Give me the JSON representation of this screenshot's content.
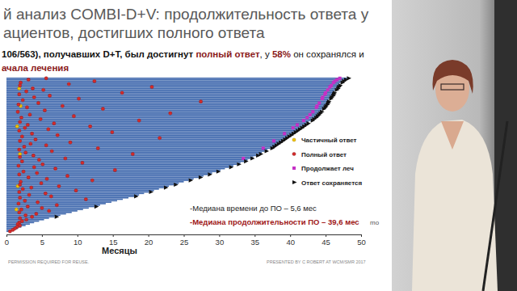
{
  "chart_data": {
    "type": "bar",
    "orientation": "horizontal",
    "title": [
      "й анализ COMBI-D+V: продолжительность ответа у",
      "ациентов, достигших полного ответа"
    ],
    "subtitle": [
      [
        {
          "text": "106/563), получавших D+T, был достигнут ",
          "color": "#111111"
        },
        {
          "text": "полный ответ",
          "color": "#8b1a1a"
        },
        {
          "text": ", у ",
          "color": "#111111"
        },
        {
          "text": "58%",
          "color": "#8b1a1a"
        },
        {
          "text": " он сохранялся и",
          "color": "#111111"
        }
      ],
      [
        {
          "text": "ачала лечения",
          "color": "#8b1a1a"
        }
      ]
    ],
    "x_label": "Месяцы",
    "xlim": [
      0,
      50
    ],
    "xticks": [
      0,
      5,
      10,
      15,
      20,
      25,
      30,
      35,
      40,
      45,
      50
    ],
    "tick_labels": "x",
    "grid": false,
    "legend": "right",
    "color": "#3f68ad",
    "values": [
      48.0,
      47.6,
      47.3,
      47.1,
      46.9,
      46.8,
      46.6,
      46.5,
      46.3,
      46.2,
      46.0,
      45.9,
      45.8,
      45.6,
      45.5,
      45.4,
      45.2,
      45.1,
      45.0,
      44.8,
      44.7,
      44.5,
      44.4,
      44.2,
      44.0,
      43.8,
      43.6,
      43.4,
      43.1,
      42.9,
      42.6,
      42.3,
      42.0,
      41.7,
      41.4,
      41.1,
      40.8,
      40.5,
      40.2,
      39.9,
      39.6,
      39.3,
      39.0,
      38.7,
      38.4,
      38.1,
      37.8,
      37.5,
      37.2,
      36.8,
      36.4,
      36.0,
      35.6,
      35.2,
      34.8,
      34.4,
      34.0,
      33.5,
      33.0,
      32.5,
      32.0,
      31.4,
      30.8,
      30.2,
      29.6,
      29.0,
      28.4,
      27.8,
      27.1,
      26.4,
      25.7,
      25.0,
      24.3,
      23.6,
      22.9,
      22.2,
      21.5,
      20.8,
      20.1,
      19.4,
      18.7,
      18.0,
      17.2,
      16.4,
      15.6,
      14.8,
      14.0,
      13.2,
      12.4,
      11.6,
      10.8,
      10.0,
      9.2,
      8.4,
      7.6,
      6.8,
      6.0,
      5.3,
      4.6,
      3.9,
      3.3,
      2.7,
      2.1,
      1.6,
      1.1,
      0.6
    ],
    "series": [
      {
        "name": "Частичный ответ",
        "type": "scatter",
        "marker": "circle",
        "color": "#f2c200",
        "values": [
          null,
          null,
          null,
          null,
          null,
          null,
          null,
          1.8,
          null,
          null,
          null,
          null,
          null,
          null,
          null,
          null,
          null,
          null,
          null,
          2.0,
          null,
          null,
          null,
          null,
          null,
          null,
          null,
          null,
          null,
          null,
          null,
          null,
          null,
          1.5,
          null,
          null,
          null,
          null,
          null,
          null,
          null,
          null,
          null,
          null,
          null,
          null,
          null,
          null,
          null,
          null,
          null,
          null,
          1.9,
          null,
          null,
          null,
          null,
          null,
          null,
          null,
          null,
          null,
          null,
          null,
          null,
          null,
          null,
          null,
          null,
          null,
          null,
          null,
          null,
          null,
          1.6,
          null,
          null,
          null,
          null,
          null,
          null,
          null,
          null,
          null,
          null,
          null,
          null,
          null,
          null,
          null,
          1.4,
          null,
          null,
          null,
          null,
          null,
          null,
          null,
          null,
          null,
          null,
          null,
          null,
          null,
          null,
          null
        ]
      },
      {
        "name": "Полный ответ",
        "type": "scatter",
        "marker": "circle",
        "color": "#d42a2a",
        "values": [
          5.6,
          3.1,
          12.4,
          2.0,
          8.8,
          1.9,
          20.5,
          3.7,
          5.2,
          2.8,
          16.3,
          1.8,
          6.1,
          3.9,
          10.2,
          2.3,
          27.4,
          4.5,
          1.7,
          7.9,
          2.9,
          13.6,
          5.4,
          1.6,
          23.1,
          3.3,
          9.5,
          2.1,
          4.8,
          18.7,
          1.9,
          6.7,
          3.0,
          11.8,
          2.6,
          5.9,
          1.8,
          14.9,
          3.6,
          7.2,
          2.2,
          21.6,
          4.1,
          1.9,
          9.0,
          3.4,
          5.6,
          2.5,
          12.9,
          1.8,
          6.4,
          2.7,
          17.8,
          3.8,
          1.9,
          8.3,
          4.6,
          2.2,
          10.7,
          5.1,
          1.7,
          3.9,
          6.9,
          15.3,
          2.4,
          4.3,
          1.8,
          8.6,
          3.1,
          5.7,
          12.1,
          2.0,
          4.9,
          1.9,
          7.4,
          3.5,
          2.3,
          9.8,
          1.8,
          5.5,
          3.2,
          6.3,
          1.9,
          11.2,
          2.6,
          4.4,
          1.7,
          7.1,
          3.0,
          5.0,
          2.1,
          6.0,
          1.8,
          4.2,
          2.7,
          3.6,
          1.9,
          2.8,
          2.2,
          1.8,
          1.6,
          1.9,
          1.5,
          1.2,
          0.9,
          0.5
        ]
      },
      {
        "name": "Продолжает леч",
        "type": "scatter",
        "marker": "square",
        "color": "#c531c5",
        "values": [
          47.0,
          46.6,
          46.3,
          46.1,
          null,
          45.8,
          45.6,
          null,
          45.3,
          null,
          45.0,
          44.9,
          null,
          44.6,
          44.5,
          null,
          null,
          44.1,
          null,
          43.8,
          43.7,
          null,
          null,
          43.2,
          null,
          42.8,
          null,
          42.4,
          null,
          41.9,
          null,
          null,
          41.0,
          null,
          40.4,
          null,
          null,
          null,
          39.2,
          null,
          null,
          null,
          null,
          37.7,
          null,
          null,
          null,
          null,
          36.2,
          null,
          null,
          null,
          null,
          null,
          null,
          33.4,
          null,
          null,
          null,
          null,
          null,
          null,
          null,
          null,
          null,
          null,
          null,
          null,
          null,
          null,
          null,
          null,
          null,
          null,
          null,
          null,
          null,
          null,
          null,
          null,
          null,
          null,
          null,
          null,
          null,
          null,
          null,
          null,
          null,
          null,
          null,
          null,
          null,
          null,
          null,
          null,
          null,
          null,
          null,
          null,
          null,
          null,
          null,
          null,
          null,
          null
        ]
      },
      {
        "name": "Ответ сохраняется",
        "type": "scatter",
        "marker": "arrow",
        "color": "#111111",
        "values": [
          48.0,
          47.6,
          47.3,
          47.1,
          null,
          46.8,
          46.6,
          46.5,
          46.3,
          null,
          46.0,
          45.9,
          45.8,
          45.6,
          45.5,
          null,
          45.2,
          45.1,
          45.0,
          44.8,
          44.7,
          44.5,
          null,
          44.2,
          44.0,
          43.8,
          43.6,
          43.4,
          43.1,
          42.9,
          null,
          42.3,
          42.0,
          41.7,
          41.4,
          41.1,
          40.8,
          40.5,
          40.2,
          39.9,
          39.6,
          39.3,
          39.0,
          38.7,
          38.4,
          38.1,
          37.8,
          37.5,
          37.2,
          null,
          36.4,
          null,
          35.6,
          35.2,
          null,
          34.4,
          null,
          33.5,
          null,
          32.5,
          null,
          31.4,
          null,
          null,
          29.6,
          null,
          28.4,
          null,
          27.1,
          null,
          25.7,
          null,
          null,
          23.6,
          null,
          22.2,
          null,
          null,
          20.1,
          null,
          null,
          18.0,
          null,
          null,
          null,
          null,
          null,
          null,
          12.4,
          null,
          null,
          null,
          null,
          null,
          null,
          6.8,
          null,
          null,
          null,
          null,
          null,
          null,
          null,
          null,
          null,
          null
        ]
      }
    ],
    "annotations": [
      {
        "text": "-Медиана времени до ПО – 5,6 мес",
        "color": "#222222"
      },
      {
        "text": "-Медиана продолжительности ПО – 39,6 мес",
        "color": "#a01818"
      },
      {
        "text": "mo",
        "color": "#555555"
      }
    ],
    "footer": [
      "PERMISSION REQUIRED FOR REUSE.",
      "PRESENTED BY C ROBERT AT WCM/SMR 2017"
    ]
  }
}
